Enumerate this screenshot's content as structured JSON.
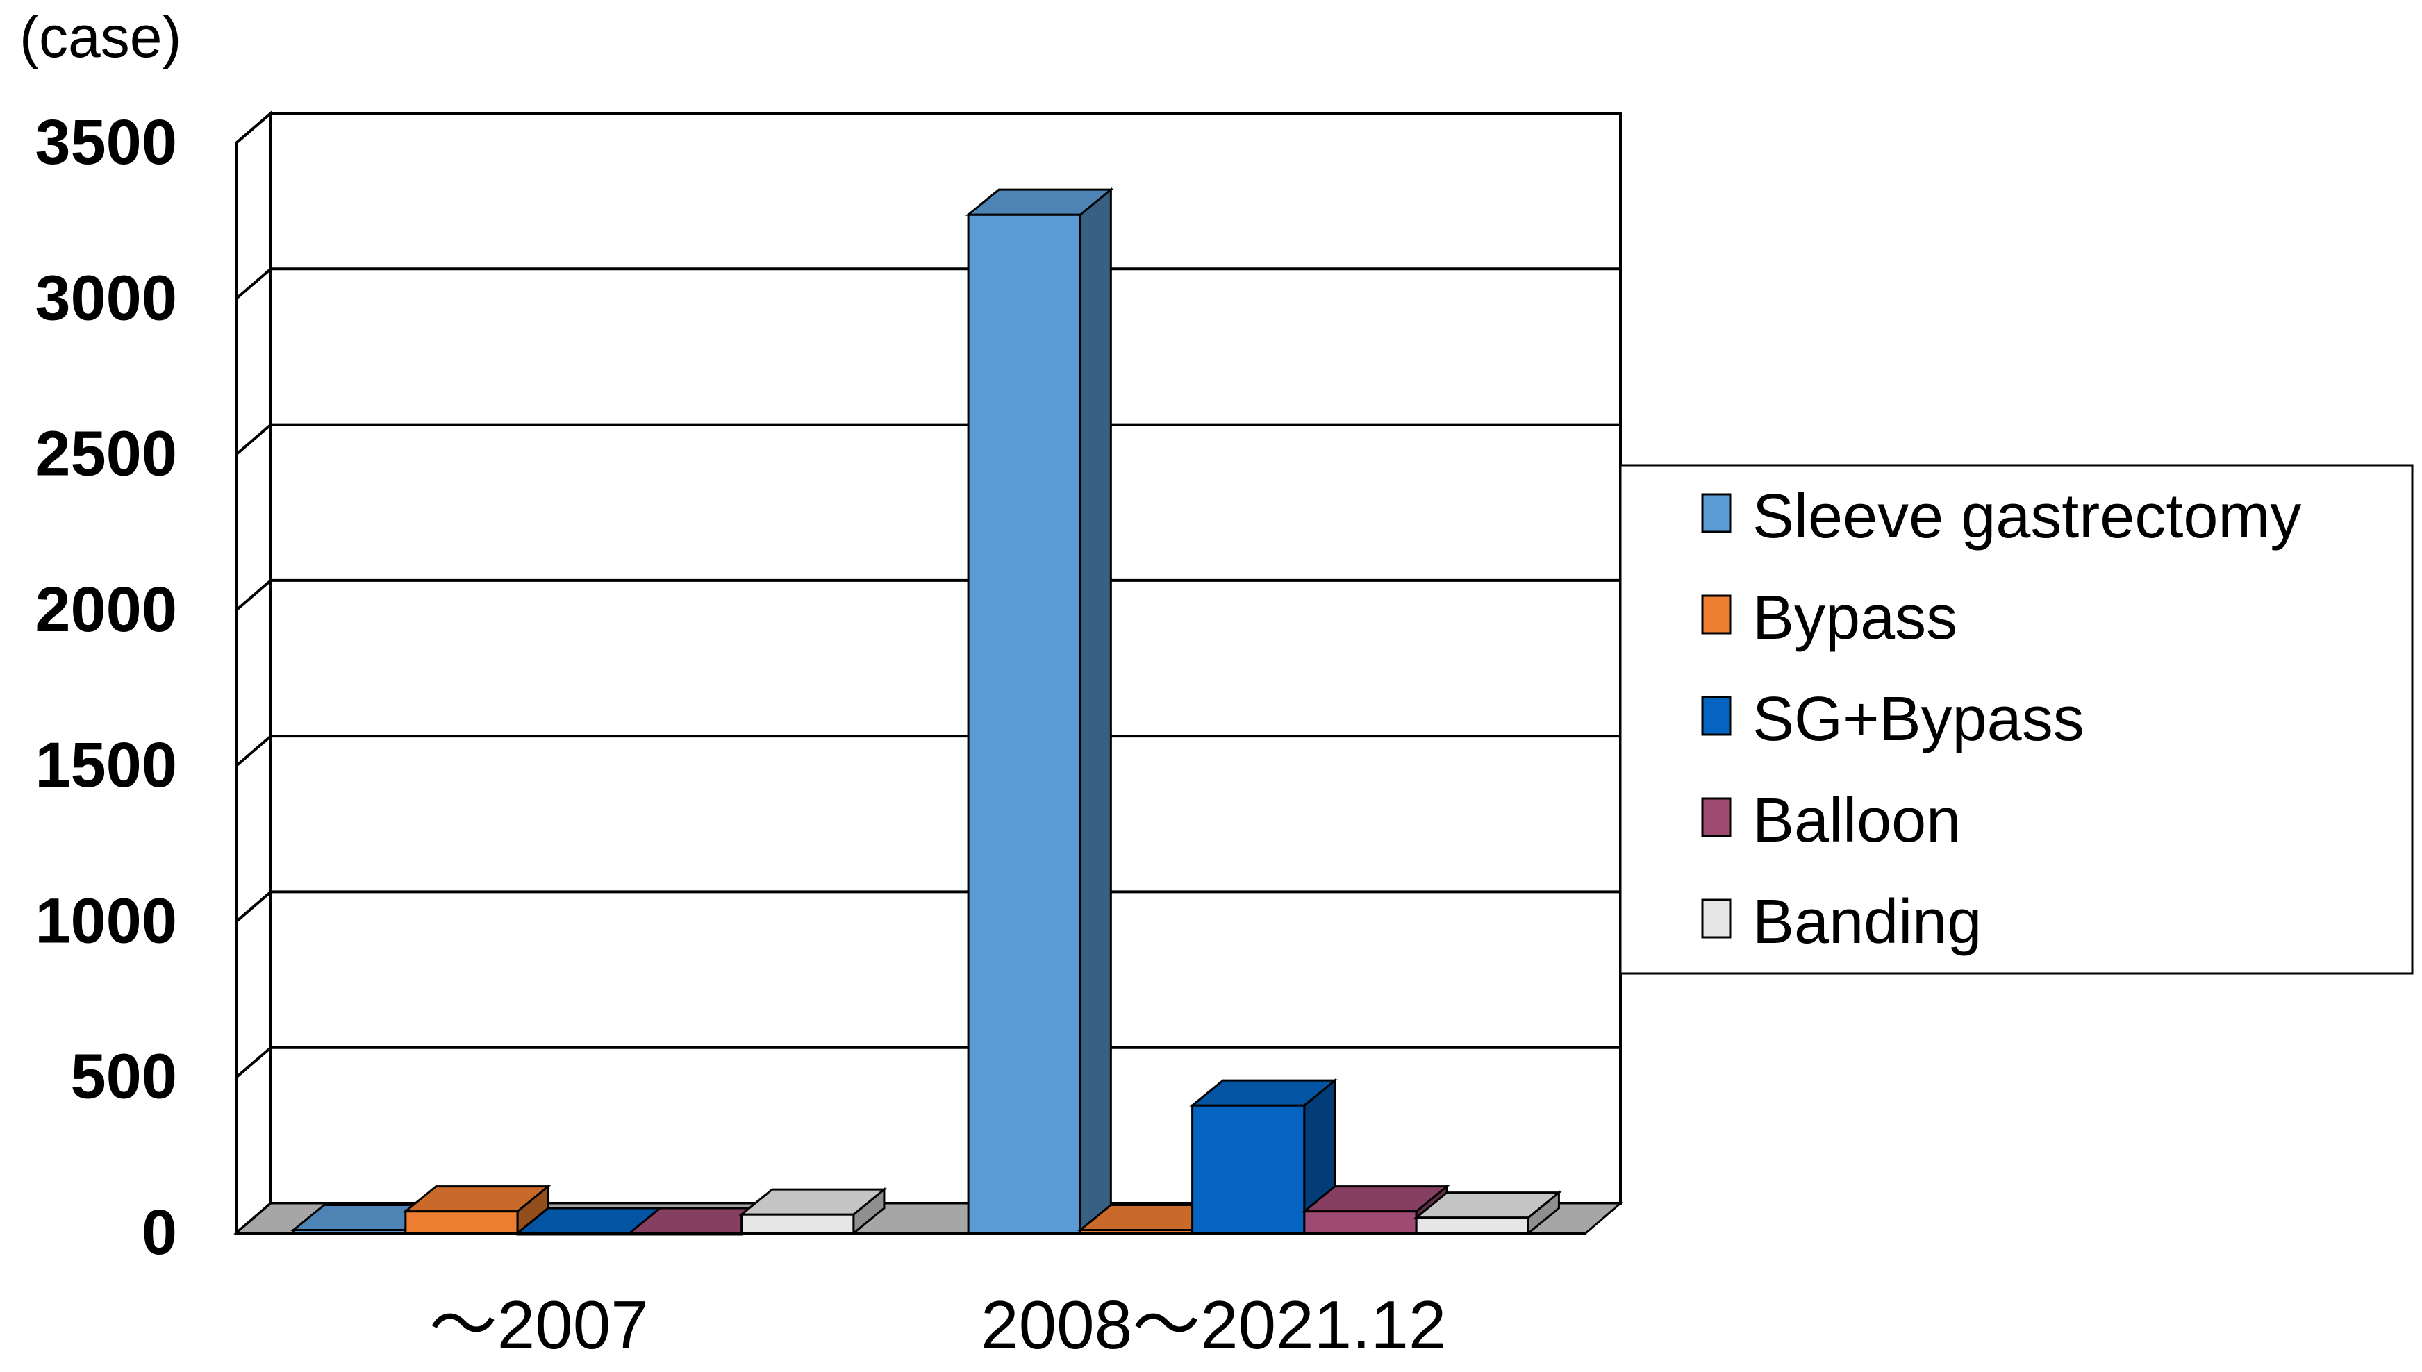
{
  "chart_data": {
    "type": "bar",
    "unit_label": "(case)",
    "categories": [
      "～2007",
      "2008～2021.12"
    ],
    "series": [
      {
        "name": "Sleeve gastrectomy",
        "color": "#5B9BD5",
        "values": [
          10,
          3270
        ]
      },
      {
        "name": "Bypass",
        "color": "#ED7D31",
        "values": [
          70,
          10
        ]
      },
      {
        "name": "SG+Bypass",
        "color": "#0563C1",
        "values": [
          0,
          410
        ]
      },
      {
        "name": "Balloon",
        "color": "#9E4A72",
        "values": [
          0,
          70
        ]
      },
      {
        "name": "Banding",
        "color": "#E6E6E6",
        "values": [
          60,
          50
        ]
      }
    ],
    "ylim": [
      0,
      3500
    ],
    "yticks": [
      0,
      500,
      1000,
      1500,
      2000,
      2500,
      3000,
      3500
    ],
    "grid": true,
    "legend_position": "right",
    "style": "3d-clustered-column"
  }
}
